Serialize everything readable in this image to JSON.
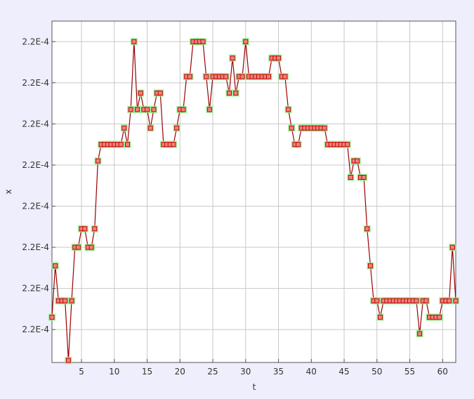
{
  "chart_data": {
    "type": "line",
    "title": "",
    "xlabel": "t",
    "ylabel": "x",
    "xlim": [
      0.5,
      62
    ],
    "ylim": [
      -0.6,
      16.0
    ],
    "x_ticks": [
      5,
      10,
      15,
      20,
      25,
      30,
      35,
      40,
      45,
      50,
      55,
      60
    ],
    "y_ticks": [
      {
        "value": 1,
        "label": "2.2E-4"
      },
      {
        "value": 3,
        "label": "2.2E-4"
      },
      {
        "value": 5,
        "label": "2.2E-4"
      },
      {
        "value": 7,
        "label": "2.2E-4"
      },
      {
        "value": 9,
        "label": "2.2E-4"
      },
      {
        "value": 11,
        "label": "2.2E-4"
      },
      {
        "value": 13,
        "label": "2.2E-4"
      },
      {
        "value": 15,
        "label": "2.2E-4"
      }
    ],
    "grid": true,
    "legend": "none",
    "series": [
      {
        "line_color": "#990000",
        "marker_color": "#f08080",
        "marker_edge_color": "#cc0000",
        "marker_highlight": "#88ee88",
        "points": [
          [
            0.5,
            1.6
          ],
          [
            1,
            4.1
          ],
          [
            1.5,
            2.4
          ],
          [
            2,
            2.4
          ],
          [
            2.5,
            2.4
          ],
          [
            3,
            -0.5
          ],
          [
            3.5,
            2.4
          ],
          [
            4,
            5.0
          ],
          [
            4.5,
            5.0
          ],
          [
            5,
            5.9
          ],
          [
            5.5,
            5.9
          ],
          [
            6,
            5.0
          ],
          [
            6.5,
            5.0
          ],
          [
            7,
            5.9
          ],
          [
            7.5,
            9.2
          ],
          [
            8,
            10.0
          ],
          [
            8.5,
            10.0
          ],
          [
            9,
            10.0
          ],
          [
            9.5,
            10.0
          ],
          [
            10,
            10.0
          ],
          [
            10.5,
            10.0
          ],
          [
            11,
            10.0
          ],
          [
            11.5,
            10.8
          ],
          [
            12,
            10.0
          ],
          [
            12.5,
            11.7
          ],
          [
            13,
            15.0
          ],
          [
            13.5,
            11.7
          ],
          [
            14,
            12.5
          ],
          [
            14.5,
            11.7
          ],
          [
            15,
            11.7
          ],
          [
            15.5,
            10.8
          ],
          [
            16,
            11.7
          ],
          [
            16.5,
            12.5
          ],
          [
            17,
            12.5
          ],
          [
            17.5,
            10.0
          ],
          [
            18,
            10.0
          ],
          [
            18.5,
            10.0
          ],
          [
            19,
            10.0
          ],
          [
            19.5,
            10.8
          ],
          [
            20,
            11.7
          ],
          [
            20.5,
            11.7
          ],
          [
            21,
            13.3
          ],
          [
            21.5,
            13.3
          ],
          [
            22,
            15.0
          ],
          [
            22.5,
            15.0
          ],
          [
            23,
            15.0
          ],
          [
            23.5,
            15.0
          ],
          [
            24,
            13.3
          ],
          [
            24.5,
            11.7
          ],
          [
            25,
            13.3
          ],
          [
            25.5,
            13.3
          ],
          [
            26,
            13.3
          ],
          [
            26.5,
            13.3
          ],
          [
            27,
            13.3
          ],
          [
            27.5,
            12.5
          ],
          [
            28,
            14.2
          ],
          [
            28.5,
            12.5
          ],
          [
            29,
            13.3
          ],
          [
            29.5,
            13.3
          ],
          [
            30,
            15.0
          ],
          [
            30.5,
            13.3
          ],
          [
            31,
            13.3
          ],
          [
            31.5,
            13.3
          ],
          [
            32,
            13.3
          ],
          [
            32.5,
            13.3
          ],
          [
            33,
            13.3
          ],
          [
            33.5,
            13.3
          ],
          [
            34,
            14.2
          ],
          [
            34.5,
            14.2
          ],
          [
            35,
            14.2
          ],
          [
            35.5,
            13.3
          ],
          [
            36,
            13.3
          ],
          [
            36.5,
            11.7
          ],
          [
            37,
            10.8
          ],
          [
            37.5,
            10.0
          ],
          [
            38,
            10.0
          ],
          [
            38.5,
            10.8
          ],
          [
            39,
            10.8
          ],
          [
            39.5,
            10.8
          ],
          [
            40,
            10.8
          ],
          [
            40.5,
            10.8
          ],
          [
            41,
            10.8
          ],
          [
            41.5,
            10.8
          ],
          [
            42,
            10.8
          ],
          [
            42.5,
            10.0
          ],
          [
            43,
            10.0
          ],
          [
            43.5,
            10.0
          ],
          [
            44,
            10.0
          ],
          [
            44.5,
            10.0
          ],
          [
            45,
            10.0
          ],
          [
            45.5,
            10.0
          ],
          [
            46,
            8.4
          ],
          [
            46.5,
            9.2
          ],
          [
            47,
            9.2
          ],
          [
            47.5,
            8.4
          ],
          [
            48,
            8.4
          ],
          [
            48.5,
            5.9
          ],
          [
            49,
            4.1
          ],
          [
            49.5,
            2.4
          ],
          [
            50,
            2.4
          ],
          [
            50.5,
            1.6
          ],
          [
            51,
            2.4
          ],
          [
            51.5,
            2.4
          ],
          [
            52,
            2.4
          ],
          [
            52.5,
            2.4
          ],
          [
            53,
            2.4
          ],
          [
            53.5,
            2.4
          ],
          [
            54,
            2.4
          ],
          [
            54.5,
            2.4
          ],
          [
            55,
            2.4
          ],
          [
            55.5,
            2.4
          ],
          [
            56,
            2.4
          ],
          [
            56.5,
            0.8
          ],
          [
            57,
            2.4
          ],
          [
            57.5,
            2.4
          ],
          [
            58,
            1.6
          ],
          [
            58.5,
            1.6
          ],
          [
            59,
            1.6
          ],
          [
            59.5,
            1.6
          ],
          [
            60,
            2.4
          ],
          [
            60.5,
            2.4
          ],
          [
            61,
            2.4
          ],
          [
            61.5,
            5.0
          ],
          [
            62,
            2.4
          ]
        ]
      }
    ]
  }
}
